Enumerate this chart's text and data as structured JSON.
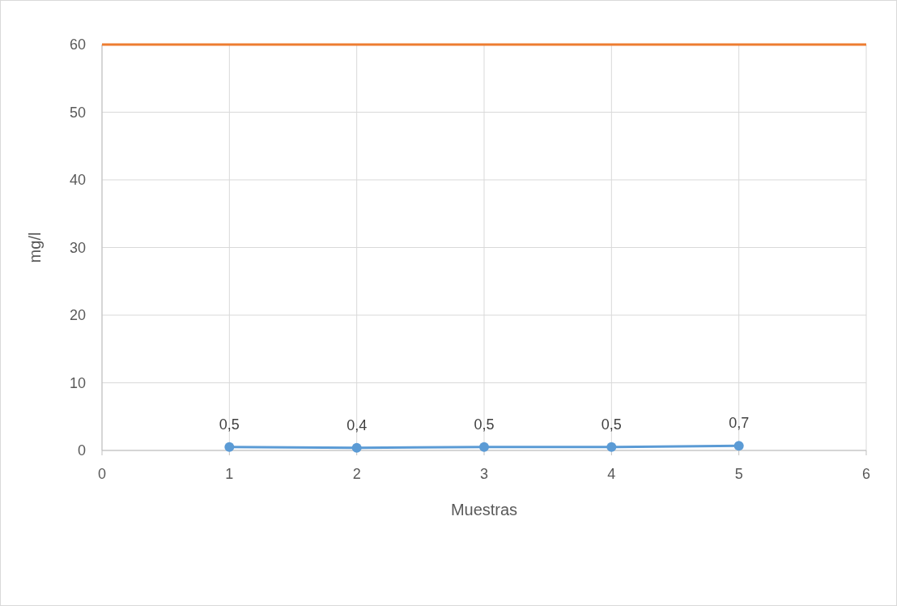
{
  "chart_data": {
    "type": "line",
    "xlabel": "Muestras",
    "ylabel": "mg/l",
    "x": [
      1,
      2,
      3,
      4,
      5
    ],
    "series": [
      {
        "color": "#5b9bd5",
        "values": [
          0.5,
          0.4,
          0.5,
          0.5,
          0.7
        ],
        "value_labels": [
          "0,5",
          "0,4",
          "0,5",
          "0,5",
          "0,7"
        ]
      }
    ],
    "xlim": [
      0,
      6
    ],
    "xticks": [
      0,
      1,
      2,
      3,
      4,
      5,
      6
    ],
    "ylim": [
      0,
      60
    ],
    "yticks": [
      0,
      10,
      20,
      30,
      40,
      50,
      60
    ],
    "grid": true,
    "marker": "circle",
    "line_style": "solid",
    "ref_lines": [
      {
        "axis": "y",
        "value": 60,
        "color": "#ed7d31"
      }
    ]
  }
}
